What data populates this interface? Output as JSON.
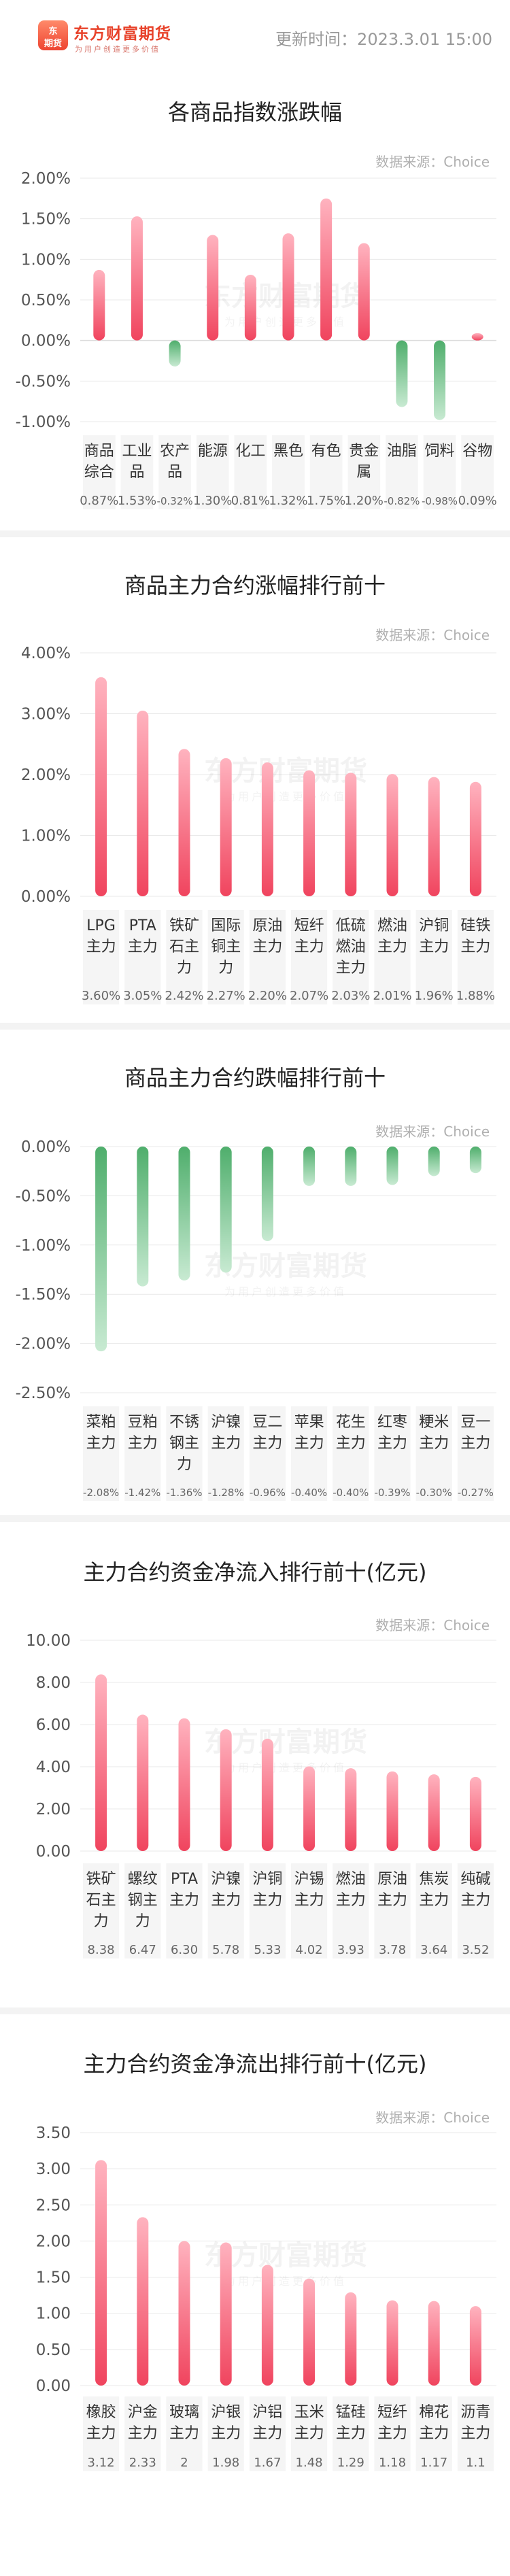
{
  "header": {
    "logo_text": "东方财富期货",
    "logo_slogan": "为用户创造更多价值",
    "logo_mark_top": "东",
    "logo_mark_bottom": "期货",
    "update_time": "更新时间：2023.3.01 15:00"
  },
  "watermark": {
    "name": "东方财富期货",
    "slogan": "为用户创造更多价值"
  },
  "source_label": "数据来源：Choice",
  "colors": {
    "up_top": "#ffb3bf",
    "up_bottom": "#f0445e",
    "down_top": "#4fae6c",
    "down_bottom": "#c8ead2",
    "label_bg": "#f5f5f5",
    "grid": "#e9e9e9"
  },
  "chart_data": [
    {
      "type": "bar",
      "title": "各商品指数涨跌幅",
      "categories": [
        [
          "商品",
          "综合"
        ],
        [
          "工业",
          "品"
        ],
        [
          "农产",
          "品"
        ],
        [
          "能源"
        ],
        [
          "化工"
        ],
        [
          "黑色"
        ],
        [
          "有色"
        ],
        [
          "贵金",
          "属"
        ],
        [
          "油脂"
        ],
        [
          "饲料"
        ],
        [
          "谷物"
        ]
      ],
      "values": [
        0.87,
        1.53,
        -0.32,
        1.3,
        0.81,
        1.32,
        1.75,
        1.2,
        -0.82,
        -0.98,
        0.09
      ],
      "value_labels": [
        "0.87%",
        "1.53%",
        "-0.32%",
        "1.30%",
        "0.81%",
        "1.32%",
        "1.75%",
        "1.20%",
        "-0.82%",
        "-0.98%",
        "0.09%"
      ],
      "ylim": [
        -1.0,
        2.0
      ],
      "yticks": [
        -1.0,
        -0.5,
        0.0,
        0.5,
        1.0,
        1.5,
        2.0
      ],
      "ytick_labels": [
        "-1.00%",
        "-0.50%",
        "0.00%",
        "0.50%",
        "1.00%",
        "1.50%",
        "2.00%"
      ],
      "grid": true,
      "legend": "none"
    },
    {
      "type": "bar",
      "title": "商品主力合约涨幅排行前十",
      "categories": [
        [
          "LPG",
          "主力"
        ],
        [
          "PTA",
          "主力"
        ],
        [
          "铁矿",
          "石主",
          "力"
        ],
        [
          "国际",
          "铜主",
          "力"
        ],
        [
          "原油",
          "主力"
        ],
        [
          "短纤",
          "主力"
        ],
        [
          "低硫",
          "燃油",
          "主力"
        ],
        [
          "燃油",
          "主力"
        ],
        [
          "沪铜",
          "主力"
        ],
        [
          "硅铁",
          "主力"
        ]
      ],
      "values": [
        3.6,
        3.05,
        2.42,
        2.27,
        2.2,
        2.07,
        2.03,
        2.01,
        1.96,
        1.88
      ],
      "value_labels": [
        "3.60%",
        "3.05%",
        "2.42%",
        "2.27%",
        "2.20%",
        "2.07%",
        "2.03%",
        "2.01%",
        "1.96%",
        "1.88%"
      ],
      "ylim": [
        0,
        4.0
      ],
      "yticks": [
        0,
        1,
        2,
        3,
        4
      ],
      "ytick_labels": [
        "0.00%",
        "1.00%",
        "2.00%",
        "3.00%",
        "4.00%"
      ],
      "grid": true,
      "legend": "none"
    },
    {
      "type": "bar",
      "title": "商品主力合约跌幅排行前十",
      "categories": [
        [
          "菜粕",
          "主力"
        ],
        [
          "豆粕",
          "主力"
        ],
        [
          "不锈",
          "钢主",
          "力"
        ],
        [
          "沪镍",
          "主力"
        ],
        [
          "豆二",
          "主力"
        ],
        [
          "苹果",
          "主力"
        ],
        [
          "花生",
          "主力"
        ],
        [
          "红枣",
          "主力"
        ],
        [
          "粳米",
          "主力"
        ],
        [
          "豆一",
          "主力"
        ]
      ],
      "values": [
        -2.08,
        -1.42,
        -1.36,
        -1.28,
        -0.96,
        -0.4,
        -0.4,
        -0.39,
        -0.3,
        -0.27
      ],
      "value_labels": [
        "-2.08%",
        "-1.42%",
        "-1.36%",
        "-1.28%",
        "-0.96%",
        "-0.40%",
        "-0.40%",
        "-0.39%",
        "-0.30%",
        "-0.27%"
      ],
      "ylim": [
        -2.5,
        0
      ],
      "yticks": [
        -2.5,
        -2.0,
        -1.5,
        -1.0,
        -0.5,
        0.0
      ],
      "ytick_labels": [
        "-2.50%",
        "-2.00%",
        "-1.50%",
        "-1.00%",
        "-0.50%",
        "0.00%"
      ],
      "grid": true,
      "legend": "none"
    },
    {
      "type": "bar",
      "title": "主力合约资金净流入排行前十(亿元)",
      "categories": [
        [
          "铁矿",
          "石主",
          "力"
        ],
        [
          "螺纹",
          "钢主",
          "力"
        ],
        [
          "PTA",
          "主力"
        ],
        [
          "沪镍",
          "主力"
        ],
        [
          "沪铜",
          "主力"
        ],
        [
          "沪锡",
          "主力"
        ],
        [
          "燃油",
          "主力"
        ],
        [
          "原油",
          "主力"
        ],
        [
          "焦炭",
          "主力"
        ],
        [
          "纯碱",
          "主力"
        ]
      ],
      "values": [
        8.38,
        6.47,
        6.3,
        5.78,
        5.33,
        4.02,
        3.93,
        3.78,
        3.64,
        3.52
      ],
      "value_labels": [
        "8.38",
        "6.47",
        "6.30",
        "5.78",
        "5.33",
        "4.02",
        "3.93",
        "3.78",
        "3.64",
        "3.52"
      ],
      "ylim": [
        0,
        10
      ],
      "yticks": [
        0,
        2,
        4,
        6,
        8,
        10
      ],
      "ytick_labels": [
        "0.00",
        "2.00",
        "4.00",
        "6.00",
        "8.00",
        "10.00"
      ],
      "grid": true,
      "legend": "none"
    },
    {
      "type": "bar",
      "title": "主力合约资金净流出排行前十(亿元)",
      "categories": [
        [
          "橡胶",
          "主力"
        ],
        [
          "沪金",
          "主力"
        ],
        [
          "玻璃",
          "主力"
        ],
        [
          "沪银",
          "主力"
        ],
        [
          "沪铝",
          "主力"
        ],
        [
          "玉米",
          "主力"
        ],
        [
          "锰硅",
          "主力"
        ],
        [
          "短纤",
          "主力"
        ],
        [
          "棉花",
          "主力"
        ],
        [
          "沥青",
          "主力"
        ]
      ],
      "values": [
        3.12,
        2.33,
        2.0,
        1.98,
        1.67,
        1.48,
        1.29,
        1.18,
        1.17,
        1.1
      ],
      "value_labels": [
        "3.12",
        "2.33",
        "2",
        "1.98",
        "1.67",
        "1.48",
        "1.29",
        "1.18",
        "1.17",
        "1.1"
      ],
      "ylim": [
        0,
        3.5
      ],
      "yticks": [
        0,
        0.5,
        1.0,
        1.5,
        2.0,
        2.5,
        3.0,
        3.5
      ],
      "ytick_labels": [
        "0.00",
        "0.50",
        "1.00",
        "1.50",
        "2.00",
        "2.50",
        "3.00",
        "3.50"
      ],
      "grid": true,
      "legend": "none"
    }
  ]
}
